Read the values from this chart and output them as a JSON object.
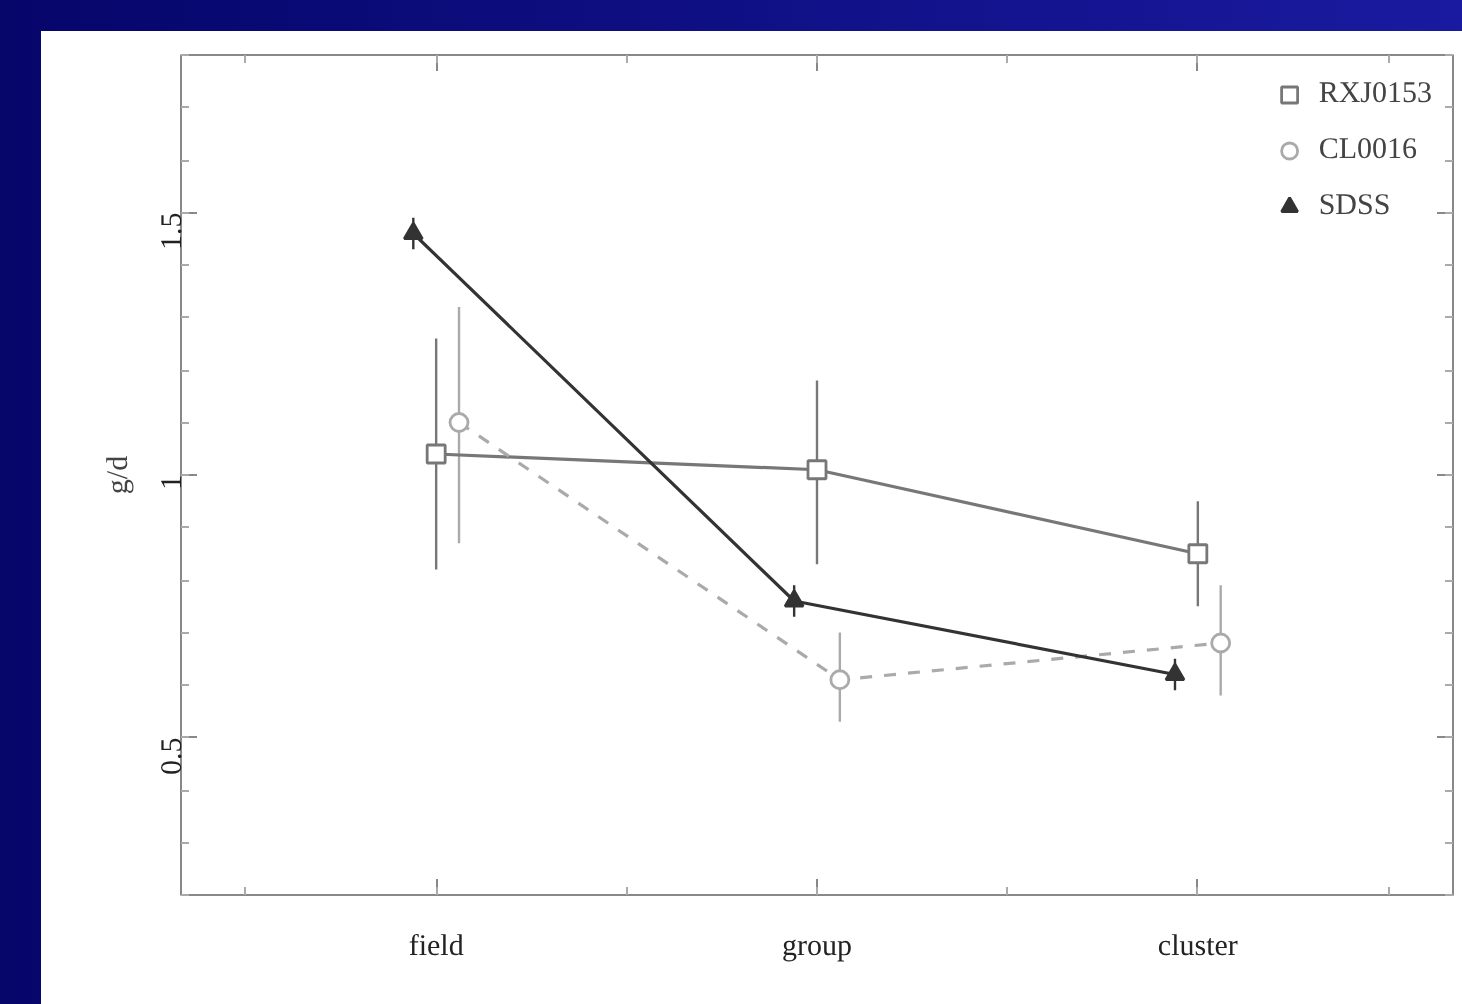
{
  "chart_data": {
    "type": "line",
    "ylabel": "g/d",
    "categories": [
      "field",
      "group",
      "cluster"
    ],
    "ylim": [
      0.2,
      1.8
    ],
    "yticks": [
      0.5,
      1,
      1.5
    ],
    "legend": "top right",
    "grid": false,
    "series": [
      {
        "name": "RXJ0153",
        "color": "#777777",
        "marker": "square",
        "line_style": "solid",
        "values": [
          1.04,
          1.01,
          0.85
        ],
        "errors": [
          [
            0.82,
            1.26
          ],
          [
            0.83,
            1.18
          ],
          [
            0.75,
            0.95
          ]
        ]
      },
      {
        "name": "CL0016",
        "color": "#aaaaaa",
        "marker": "circle",
        "line_style": "dashed",
        "values": [
          1.1,
          0.61,
          0.68
        ],
        "errors": [
          [
            0.87,
            1.32
          ],
          [
            0.53,
            0.7
          ],
          [
            0.58,
            0.79
          ]
        ]
      },
      {
        "name": "SDSS",
        "color": "#333333",
        "marker": "triangle",
        "line_style": "solid",
        "values": [
          1.46,
          0.76,
          0.62
        ],
        "errors": [
          [
            1.43,
            1.49
          ],
          [
            0.73,
            0.79
          ],
          [
            0.59,
            0.65
          ]
        ]
      }
    ]
  }
}
